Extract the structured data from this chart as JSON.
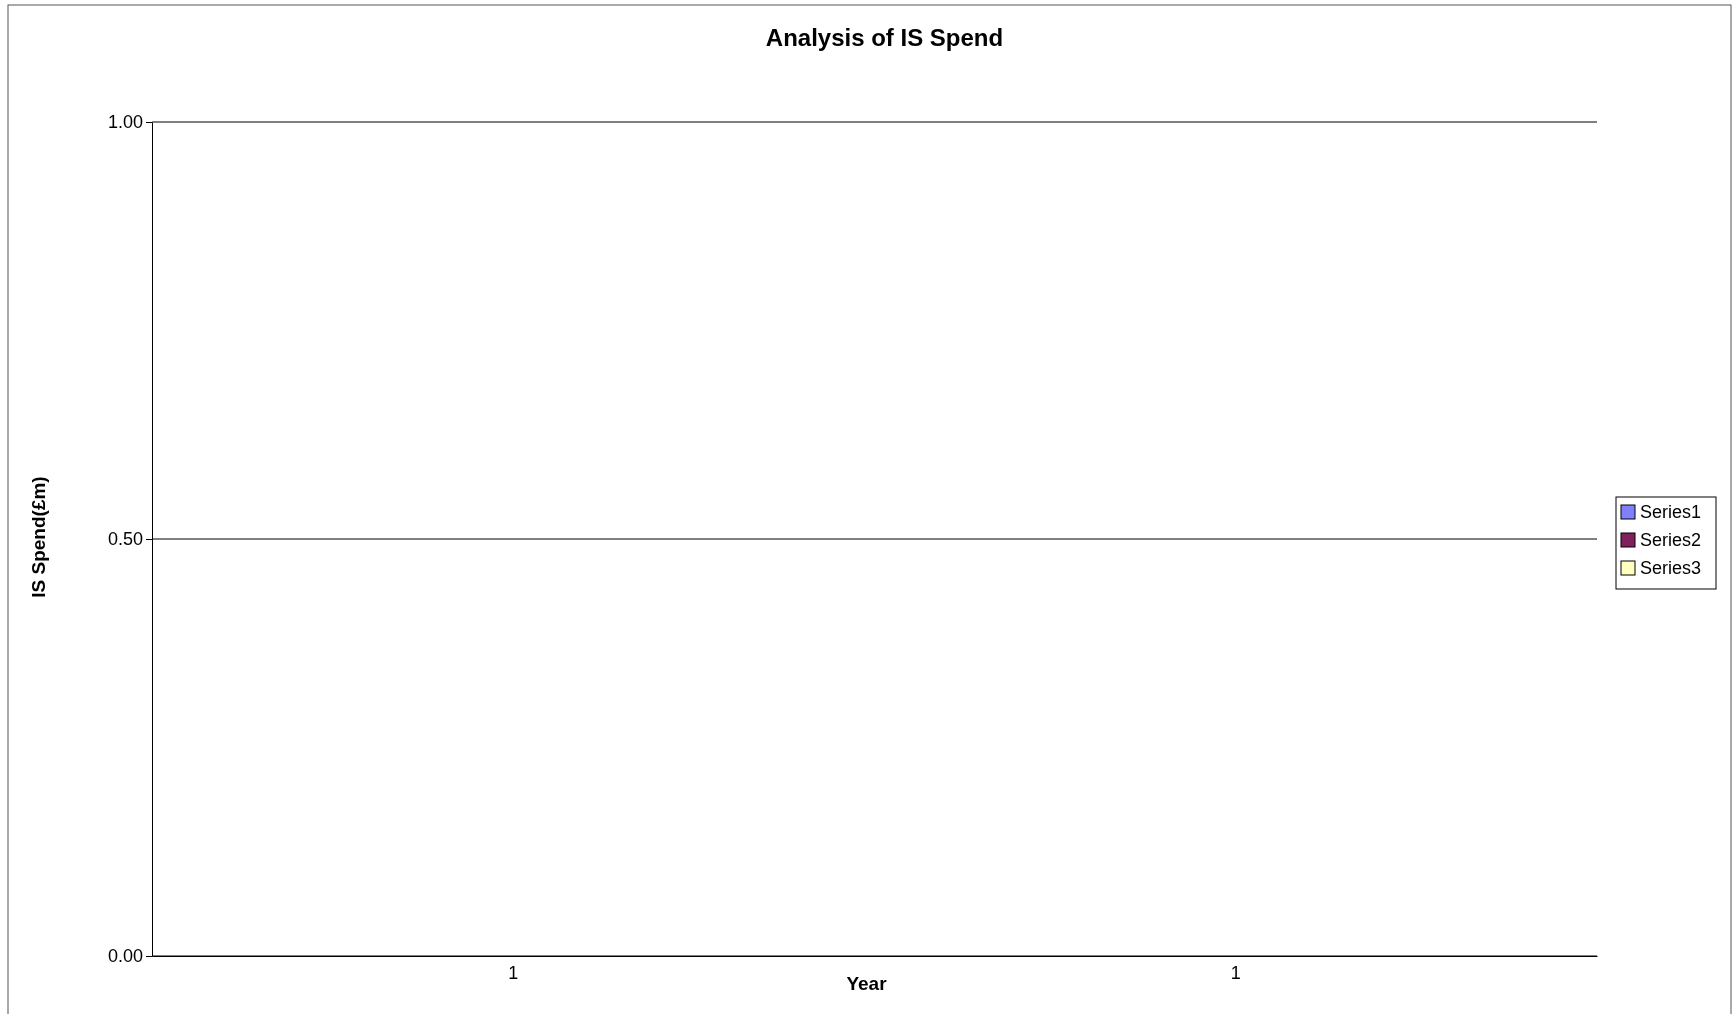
{
  "chart_data": {
    "type": "bar",
    "title": "Analysis of IS Spend",
    "xlabel": "Year",
    "ylabel": "IS Spend(£m)",
    "categories": [
      "1",
      "1"
    ],
    "series": [
      {
        "name": "Series1",
        "color": "#8080ff",
        "values": [
          0,
          0
        ]
      },
      {
        "name": "Series2",
        "color": "#802060",
        "values": [
          0,
          0
        ]
      },
      {
        "name": "Series3",
        "color": "#ffffc0",
        "values": [
          0,
          0
        ]
      }
    ],
    "ylim": [
      0,
      1
    ],
    "yticks": [
      {
        "value": 0,
        "label": "0.00"
      },
      {
        "value": 0.5,
        "label": "0.50"
      },
      {
        "value": 1,
        "label": "1.00"
      }
    ],
    "grid": "y",
    "legend": "right"
  }
}
